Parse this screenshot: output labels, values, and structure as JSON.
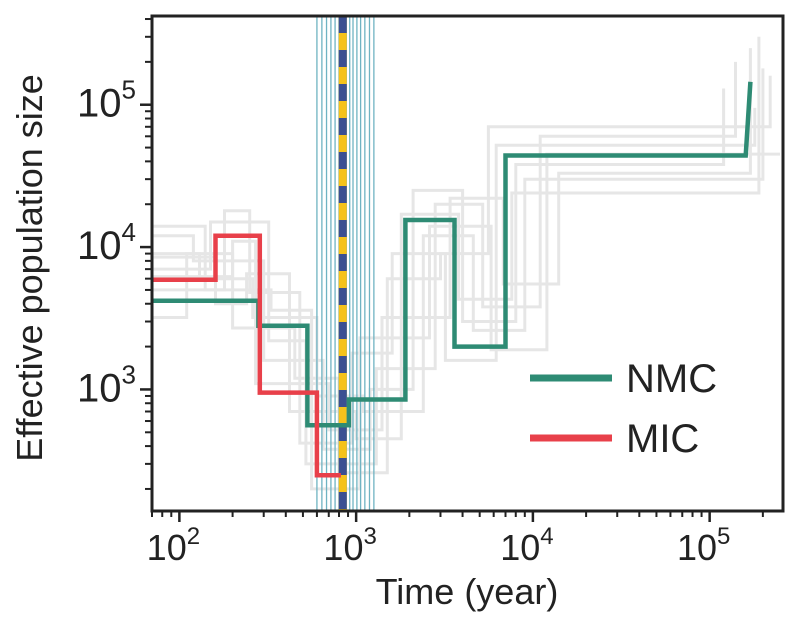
{
  "chart_data": {
    "type": "line",
    "title": "",
    "xlabel": "Time (year)",
    "ylabel": "Effective population size",
    "xscale": "log",
    "yscale": "log",
    "xlim": [
      70,
      260000
    ],
    "ylim": [
      140,
      420000
    ],
    "x_ticks": [
      {
        "value": 100,
        "base": "10",
        "exp": "2"
      },
      {
        "value": 1000,
        "base": "10",
        "exp": "3"
      },
      {
        "value": 10000,
        "base": "10",
        "exp": "4"
      },
      {
        "value": 100000,
        "base": "10",
        "exp": "5"
      }
    ],
    "y_ticks": [
      {
        "value": 1000,
        "base": "10",
        "exp": "3"
      },
      {
        "value": 10000,
        "base": "10",
        "exp": "4"
      },
      {
        "value": 100000,
        "base": "10",
        "exp": "5"
      }
    ],
    "legend": {
      "location": "lower-right",
      "entries": [
        {
          "name": "NMC",
          "color": "#2e8b74"
        },
        {
          "name": "MIC",
          "color": "#e8404a"
        }
      ]
    },
    "series": [
      {
        "name": "NMC",
        "color": "#2e8b74",
        "steps": [
          [
            70,
            4200
          ],
          [
            280,
            4200
          ],
          [
            280,
            2800
          ],
          [
            530,
            2800
          ],
          [
            530,
            560
          ],
          [
            910,
            560
          ],
          [
            910,
            850
          ],
          [
            1900,
            850
          ],
          [
            1900,
            15500
          ],
          [
            3600,
            15500
          ],
          [
            3600,
            2000
          ],
          [
            7000,
            2000
          ],
          [
            7000,
            44000
          ],
          [
            160000,
            44000
          ],
          [
            170000,
            145000
          ]
        ]
      },
      {
        "name": "MIC",
        "color": "#e8404a",
        "steps": [
          [
            70,
            5900
          ],
          [
            160,
            5900
          ],
          [
            160,
            12000
          ],
          [
            285,
            12000
          ],
          [
            285,
            950
          ],
          [
            600,
            950
          ],
          [
            600,
            250
          ],
          [
            820,
            250
          ]
        ]
      }
    ],
    "bootstrap_series": {
      "color": "#e6e6e6",
      "steps": [
        [
          [
            70,
            9000
          ],
          [
            130,
            9000
          ],
          [
            130,
            6000
          ],
          [
            260,
            6000
          ],
          [
            260,
            3200
          ],
          [
            600,
            3200
          ],
          [
            600,
            900
          ],
          [
            1100,
            900
          ],
          [
            1100,
            700
          ],
          [
            2400,
            700
          ],
          [
            2400,
            12000
          ],
          [
            4600,
            12000
          ],
          [
            4600,
            2600
          ],
          [
            9000,
            2600
          ],
          [
            9000,
            30000
          ],
          [
            200000,
            30000
          ],
          [
            200000,
            180000
          ]
        ],
        [
          [
            70,
            7000
          ],
          [
            150,
            7000
          ],
          [
            150,
            15000
          ],
          [
            320,
            15000
          ],
          [
            320,
            2200
          ],
          [
            520,
            2200
          ],
          [
            520,
            300
          ],
          [
            1300,
            300
          ],
          [
            1300,
            1400
          ],
          [
            2800,
            1400
          ],
          [
            2800,
            20000
          ],
          [
            5200,
            20000
          ],
          [
            5200,
            3800
          ],
          [
            11000,
            3800
          ],
          [
            11000,
            60000
          ],
          [
            140000,
            60000
          ],
          [
            140000,
            200000
          ]
        ],
        [
          [
            70,
            5000
          ],
          [
            180,
            5000
          ],
          [
            180,
            18000
          ],
          [
            250,
            18000
          ],
          [
            250,
            4800
          ],
          [
            480,
            4800
          ],
          [
            480,
            420
          ],
          [
            950,
            420
          ],
          [
            950,
            1800
          ],
          [
            1600,
            1800
          ],
          [
            1600,
            9000
          ],
          [
            3200,
            9000
          ],
          [
            3200,
            1600
          ],
          [
            6200,
            1600
          ],
          [
            6200,
            52000
          ],
          [
            180000,
            52000
          ],
          [
            180000,
            95000
          ]
        ],
        [
          [
            70,
            12000
          ],
          [
            120,
            12000
          ],
          [
            120,
            8000
          ],
          [
            300,
            8000
          ],
          [
            300,
            1600
          ],
          [
            650,
            1600
          ],
          [
            650,
            380
          ],
          [
            1200,
            380
          ],
          [
            1200,
            1000
          ],
          [
            2100,
            1000
          ],
          [
            2100,
            25000
          ],
          [
            4000,
            25000
          ],
          [
            4000,
            3000
          ],
          [
            8000,
            3000
          ],
          [
            8000,
            38000
          ],
          [
            120000,
            38000
          ],
          [
            120000,
            130000
          ]
        ],
        [
          [
            70,
            3200
          ],
          [
            110,
            3200
          ],
          [
            110,
            9000
          ],
          [
            200,
            9000
          ],
          [
            200,
            2700
          ],
          [
            450,
            2700
          ],
          [
            450,
            1200
          ],
          [
            800,
            1200
          ],
          [
            800,
            260
          ],
          [
            1500,
            260
          ],
          [
            1500,
            6000
          ],
          [
            3000,
            6000
          ],
          [
            3000,
            9000
          ],
          [
            5600,
            9000
          ],
          [
            5600,
            70000
          ],
          [
            220000,
            70000
          ],
          [
            220000,
            160000
          ]
        ],
        [
          [
            70,
            14000
          ],
          [
            140,
            14000
          ],
          [
            140,
            5000
          ],
          [
            330,
            5000
          ],
          [
            330,
            3600
          ],
          [
            560,
            3600
          ],
          [
            560,
            200
          ],
          [
            1050,
            200
          ],
          [
            1050,
            2300
          ],
          [
            2600,
            2300
          ],
          [
            2600,
            14000
          ],
          [
            5800,
            14000
          ],
          [
            5800,
            1900
          ],
          [
            12000,
            1900
          ],
          [
            12000,
            45000
          ],
          [
            250000,
            45000
          ]
        ],
        [
          [
            70,
            6200
          ],
          [
            200,
            6200
          ],
          [
            200,
            11000
          ],
          [
            270,
            11000
          ],
          [
            270,
            1100
          ],
          [
            700,
            1100
          ],
          [
            700,
            520
          ],
          [
            1400,
            520
          ],
          [
            1400,
            3200
          ],
          [
            3400,
            3200
          ],
          [
            3400,
            22000
          ],
          [
            6800,
            22000
          ],
          [
            6800,
            5500
          ],
          [
            14000,
            5500
          ],
          [
            14000,
            33000
          ],
          [
            170000,
            33000
          ],
          [
            170000,
            250000
          ]
        ],
        [
          [
            70,
            8500
          ],
          [
            160,
            8500
          ],
          [
            160,
            4000
          ],
          [
            240,
            4000
          ],
          [
            240,
            6500
          ],
          [
            420,
            6500
          ],
          [
            420,
            700
          ],
          [
            1000,
            700
          ],
          [
            1000,
            450
          ],
          [
            1800,
            450
          ],
          [
            1800,
            17000
          ],
          [
            3800,
            17000
          ],
          [
            3800,
            4300
          ],
          [
            7600,
            4300
          ],
          [
            7600,
            24000
          ],
          [
            190000,
            24000
          ],
          [
            190000,
            300000
          ]
        ]
      ]
    },
    "vertical_lines": {
      "color": "#6fb3c2",
      "x": [
        600,
        640,
        680,
        720,
        760,
        800,
        840,
        880,
        920,
        960,
        1010,
        1060,
        1120,
        1190,
        1260
      ]
    },
    "dashed_line": {
      "x": 840,
      "colors": [
        "#3b4f92",
        "#f5c21b"
      ]
    }
  }
}
